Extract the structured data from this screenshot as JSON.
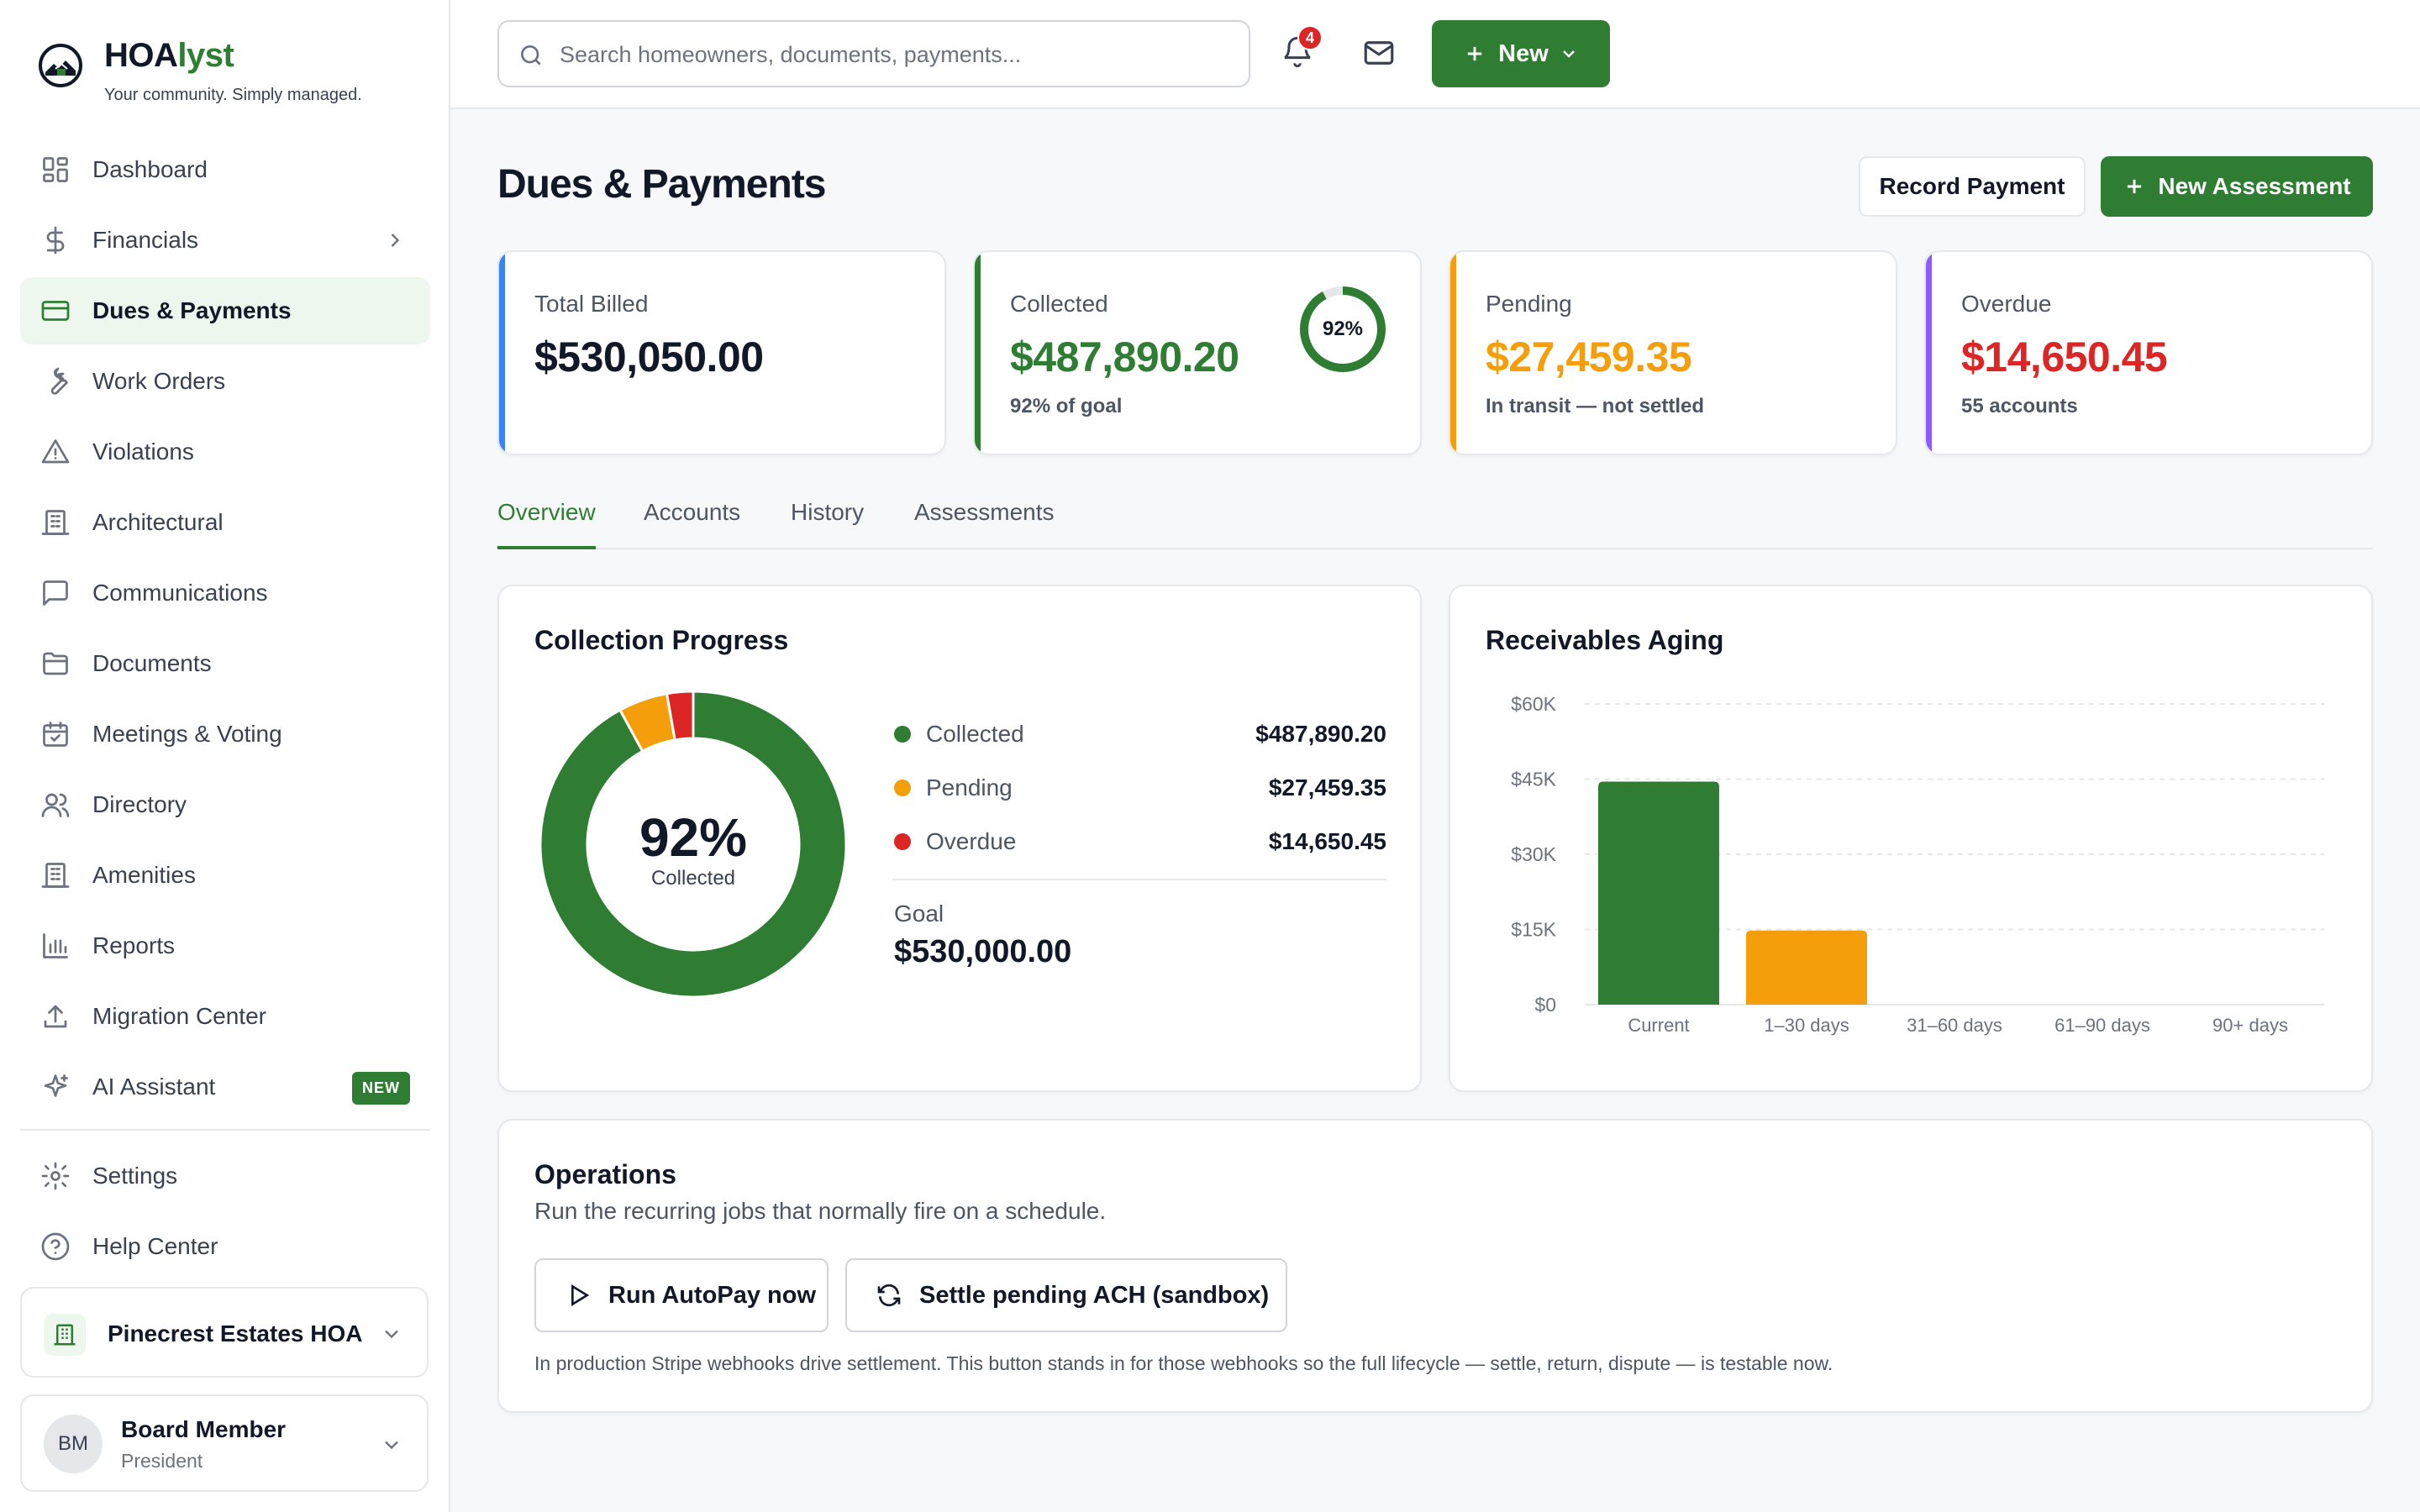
{
  "brand": {
    "name_main": "HOA",
    "name_accent": "lyst",
    "tagline": "Your community. Simply managed."
  },
  "sidebar": {
    "items": [
      {
        "label": "Dashboard",
        "icon": "grid-icon"
      },
      {
        "label": "Financials",
        "icon": "dollar-icon",
        "has_chevron": true
      },
      {
        "label": "Dues & Payments",
        "icon": "credit-card-icon",
        "active": true
      },
      {
        "label": "Work Orders",
        "icon": "wrench-icon"
      },
      {
        "label": "Violations",
        "icon": "warning-icon"
      },
      {
        "label": "Architectural",
        "icon": "building-icon"
      },
      {
        "label": "Communications",
        "icon": "chat-icon"
      },
      {
        "label": "Documents",
        "icon": "folder-icon"
      },
      {
        "label": "Meetings & Voting",
        "icon": "calendar-check-icon"
      },
      {
        "label": "Directory",
        "icon": "users-icon"
      },
      {
        "label": "Amenities",
        "icon": "building-icon"
      },
      {
        "label": "Reports",
        "icon": "bar-chart-icon"
      },
      {
        "label": "Migration Center",
        "icon": "upload-icon"
      },
      {
        "label": "AI Assistant",
        "icon": "sparkle-icon",
        "badge": "NEW"
      }
    ],
    "bottom_items": [
      {
        "label": "Settings",
        "icon": "gear-icon"
      },
      {
        "label": "Help Center",
        "icon": "help-circle-icon"
      }
    ],
    "org": {
      "name": "Pinecrest Estates HOA"
    },
    "user": {
      "initials": "BM",
      "name": "Board Member",
      "role": "President"
    }
  },
  "topbar": {
    "search_placeholder": "Search homeowners, documents, payments...",
    "notification_count": "4",
    "new_label": "New"
  },
  "page": {
    "title": "Dues & Payments",
    "record_payment_label": "Record Payment",
    "new_assessment_label": "New Assessment"
  },
  "stats": [
    {
      "label": "Total Billed",
      "value": "$530,050.00",
      "sub": "",
      "color": "#3b82f6",
      "value_color": "#111827"
    },
    {
      "label": "Collected",
      "value": "$487,890.20",
      "sub": "92% of goal",
      "color": "#2e7d32",
      "value_color": "#2e7d32",
      "ring_pct": "92%",
      "ring_value": 0.92
    },
    {
      "label": "Pending",
      "value": "$27,459.35",
      "sub": "In transit — not settled",
      "color": "#f59e0b",
      "value_color": "#f59e0b"
    },
    {
      "label": "Overdue",
      "value": "$14,650.45",
      "sub": "55 accounts",
      "color": "#8b5cf6",
      "value_color": "#dc2626"
    }
  ],
  "tabs": [
    {
      "label": "Overview",
      "active": true
    },
    {
      "label": "Accounts"
    },
    {
      "label": "History"
    },
    {
      "label": "Assessments"
    }
  ],
  "collection": {
    "title": "Collection Progress",
    "center_pct": "92%",
    "center_caption": "Collected",
    "segments": [
      {
        "name": "Collected",
        "display": "$487,890.20",
        "value": 487890.2,
        "color": "#2e7d32"
      },
      {
        "name": "Pending",
        "display": "$27,459.35",
        "value": 27459.35,
        "color": "#f59e0b"
      },
      {
        "name": "Overdue",
        "display": "$14,650.45",
        "value": 14650.45,
        "color": "#dc2626"
      }
    ],
    "goal_label": "Goal",
    "goal_value": "$530,000.00"
  },
  "aging": {
    "title": "Receivables Aging"
  },
  "chart_data": {
    "type": "bar",
    "title": "Receivables Aging",
    "categories": [
      "Current",
      "1–30 days",
      "31–60 days",
      "61–90 days",
      "90+ days"
    ],
    "values": [
      44500,
      14800,
      0,
      0,
      0
    ],
    "colors": [
      "#2e7d32",
      "#f59e0b",
      "#dc2626",
      "#dc2626",
      "#dc2626"
    ],
    "ylim": [
      0,
      60000
    ],
    "yticks": [
      0,
      15000,
      30000,
      45000,
      60000
    ],
    "ytick_labels": [
      "$0",
      "$15K",
      "$30K",
      "$45K",
      "$60K"
    ],
    "grid": true,
    "xlabel": "",
    "ylabel": ""
  },
  "operations": {
    "title": "Operations",
    "subtitle": "Run the recurring jobs that normally fire on a schedule.",
    "run_autopay_label": "Run AutoPay now",
    "settle_ach_label": "Settle pending ACH (sandbox)",
    "note": "In production Stripe webhooks drive settlement. This button stands in for those webhooks so the full lifecycle — settle, return, dispute — is testable now."
  }
}
